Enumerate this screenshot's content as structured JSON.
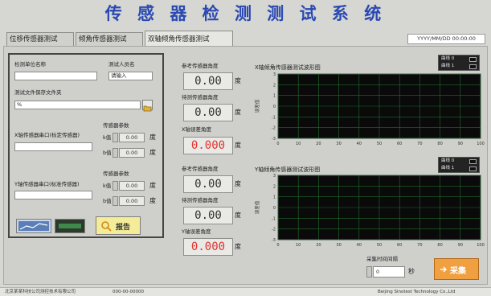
{
  "window_title": "传 感 器 检 测 测 试 系 统",
  "tabs": [
    {
      "label": "位移传感器测试"
    },
    {
      "label": "倾角传感器测试"
    },
    {
      "label": "双轴倾角传感器测试"
    }
  ],
  "datetime": "YYYY/MM/DD 00:00:00",
  "left_panel": {
    "fields": [
      {
        "label": "检测单位名称",
        "value": ""
      },
      {
        "label": "测试人员名",
        "value": "请输入"
      },
      {
        "label": "测试文件保存文件夹",
        "value": "%"
      }
    ],
    "sensor_x": {
      "port_label": "X轴传感器串口(标定传感器)",
      "param_label": "传感器参数",
      "k_label": "k值",
      "k_value": "0.00",
      "b_label": "b值",
      "b_value": "0.00",
      "unit": "度"
    },
    "sensor_y": {
      "port_label": "Y轴传感器串口(标准传感器)",
      "param_label": "传感器参数",
      "k_label": "k值",
      "k_value": "0.00",
      "b_label": "b值",
      "b_value": "0.00",
      "unit": "度"
    },
    "save_button_label": "报告"
  },
  "middle": {
    "group1": [
      {
        "label": "参考传感器角度",
        "value": "0.00",
        "unit": "度",
        "color": "#333333"
      },
      {
        "label": "待测传感器角度",
        "value": "0.00",
        "unit": "度",
        "color": "#333333"
      },
      {
        "label": "X轴误差角度",
        "value": "0.000",
        "unit": "度",
        "color": "#e0332f"
      }
    ],
    "group2": [
      {
        "label": "参考传感器角度",
        "value": "0.00",
        "unit": "度",
        "color": "#333333"
      },
      {
        "label": "待测传感器角度",
        "value": "0.00",
        "unit": "度",
        "color": "#333333"
      },
      {
        "label": "Y轴误差角度",
        "value": "0.000",
        "unit": "度",
        "color": "#e0332f"
      }
    ]
  },
  "charts": [
    {
      "title": "X轴倾角传感器测试波形图",
      "ylabel": "误差值",
      "legend": [
        "曲线 0",
        "曲线 1"
      ],
      "y_ticks": [
        "3",
        "2",
        "1",
        "0",
        "-1",
        "-2",
        "-3"
      ],
      "x_ticks": [
        "0",
        "10",
        "20",
        "30",
        "40",
        "50",
        "60",
        "70",
        "80",
        "90",
        "100"
      ]
    },
    {
      "title": "Y轴倾角传感器测试波形图",
      "ylabel": "误差值",
      "legend": [
        "曲线 0",
        "曲线 1"
      ],
      "y_ticks": [
        "3",
        "2",
        "1",
        "0",
        "-1",
        "-2",
        "-3"
      ],
      "x_ticks": [
        "0",
        "10",
        "20",
        "30",
        "40",
        "50",
        "60",
        "70",
        "80",
        "90",
        "100"
      ]
    }
  ],
  "interval": {
    "label": "采集时间间隔",
    "value": "0",
    "unit": "秒"
  },
  "collect_button_label": "采集",
  "status": {
    "left": "北京某某科技公司测控技术有限公司",
    "mid": "000-00-00000",
    "right": "Beijing Sinotest Technology Co.,Ltd"
  },
  "colors": {
    "title": "#2a49b2",
    "accent_button": "#f0a040",
    "save_button": "#f4ec98",
    "plot_bg": "#0a0a0a",
    "grid": "#1f6b2c",
    "error_value": "#e0332f"
  }
}
